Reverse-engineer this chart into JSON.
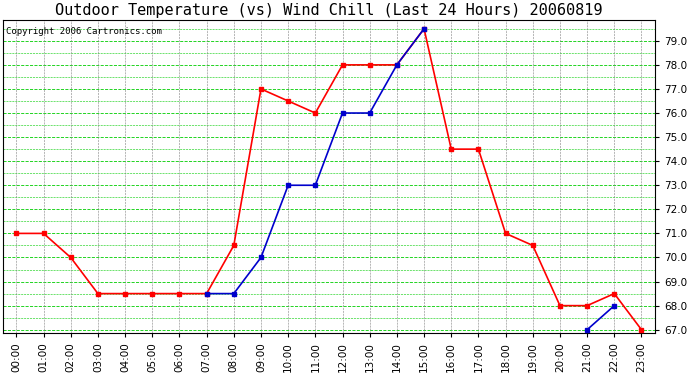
{
  "title": "Outdoor Temperature (vs) Wind Chill (Last 24 Hours) 20060819",
  "copyright": "Copyright 2006 Cartronics.com",
  "hours": [
    "00:00",
    "01:00",
    "02:00",
    "03:00",
    "04:00",
    "05:00",
    "06:00",
    "07:00",
    "08:00",
    "09:00",
    "10:00",
    "11:00",
    "12:00",
    "13:00",
    "14:00",
    "15:00",
    "16:00",
    "17:00",
    "18:00",
    "19:00",
    "20:00",
    "21:00",
    "22:00",
    "23:00"
  ],
  "temp": [
    71.0,
    71.0,
    70.0,
    68.5,
    68.5,
    68.5,
    68.5,
    68.5,
    70.5,
    77.0,
    76.5,
    76.0,
    78.0,
    78.0,
    78.0,
    79.5,
    74.5,
    74.5,
    71.0,
    70.5,
    68.0,
    68.0,
    68.5,
    67.0
  ],
  "windchill": [
    null,
    null,
    null,
    null,
    null,
    null,
    null,
    68.5,
    68.5,
    70.0,
    73.0,
    73.0,
    76.0,
    76.0,
    78.0,
    79.5,
    null,
    null,
    null,
    null,
    null,
    67.0,
    68.0,
    null
  ],
  "temp_color": "#ff0000",
  "windchill_color": "#0000cc",
  "bg_color": "#ffffff",
  "plot_bg_color": "#ffffff",
  "grid_h_color": "#00cc00",
  "grid_v_color": "#808080",
  "ylim_min": 67.0,
  "ylim_max": 79.5,
  "yticks": [
    67.0,
    68.0,
    69.0,
    70.0,
    71.0,
    72.0,
    73.0,
    74.0,
    75.0,
    76.0,
    77.0,
    78.0,
    79.0
  ],
  "marker": "s",
  "markersize": 3,
  "linewidth": 1.2,
  "title_fontsize": 11,
  "tick_fontsize": 7.5,
  "copyright_fontsize": 6.5
}
